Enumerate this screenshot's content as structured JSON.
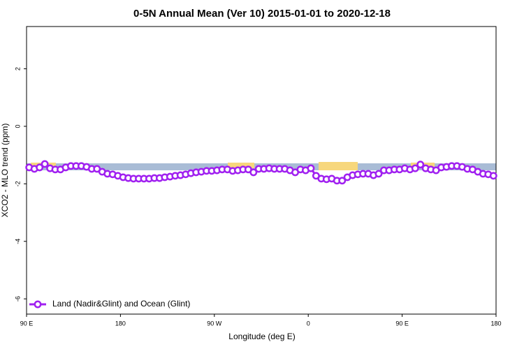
{
  "chart_data": {
    "type": "line",
    "title": "0-5N Annual Mean (Ver 10)   2015-01-01 to 2020-12-18",
    "x_label": "Longitude (deg E)",
    "y_label": "XCO2 - MLO trend (ppm)",
    "xlim": [
      90,
      540
    ],
    "xticks": [
      {
        "value": 90,
        "label": "90 E"
      },
      {
        "value": 180,
        "label": "180"
      },
      {
        "value": 270,
        "label": "90 W"
      },
      {
        "value": 360,
        "label": "0"
      },
      {
        "value": 450,
        "label": "90 E"
      },
      {
        "value": 540,
        "label": "180"
      }
    ],
    "ylim": [
      -6.53,
      3.47
    ],
    "yticks": [
      -6,
      -4,
      -2,
      0,
      2
    ],
    "legend": "bottom-left",
    "x": [
      92.5,
      97.5,
      102.5,
      107.5,
      112.5,
      117.5,
      122.5,
      127.5,
      132.5,
      137.5,
      142.5,
      147.5,
      152.5,
      157.5,
      162.5,
      167.5,
      172.5,
      177.5,
      182.5,
      187.5,
      192.5,
      197.5,
      202.5,
      207.5,
      212.5,
      217.5,
      222.5,
      227.5,
      232.5,
      237.5,
      242.5,
      247.5,
      252.5,
      257.5,
      262.5,
      267.5,
      272.5,
      277.5,
      282.5,
      287.5,
      292.5,
      297.5,
      302.5,
      307.5,
      312.5,
      317.5,
      322.5,
      327.5,
      332.5,
      337.5,
      342.5,
      347.5,
      352.5,
      357.5,
      362.5,
      367.5,
      372.5,
      377.5,
      382.5,
      387.5,
      392.5,
      397.5,
      402.5,
      407.5,
      412.5,
      417.5,
      422.5,
      427.5,
      432.5,
      437.5,
      442.5,
      447.5,
      452.5,
      457.5,
      462.5,
      467.5,
      472.5,
      477.5,
      482.5,
      487.5,
      492.5,
      497.5,
      502.5,
      507.5,
      512.5,
      517.5,
      522.5,
      527.5,
      532.5,
      537.5
    ],
    "series": [
      {
        "name": "Land (Nadir&Glint) and Ocean (Glint)",
        "color": "#a020f0",
        "values": [
          -1.43,
          -1.48,
          -1.43,
          -1.31,
          -1.46,
          -1.5,
          -1.5,
          -1.43,
          -1.38,
          -1.38,
          -1.38,
          -1.41,
          -1.48,
          -1.48,
          -1.58,
          -1.65,
          -1.67,
          -1.72,
          -1.77,
          -1.8,
          -1.82,
          -1.82,
          -1.82,
          -1.82,
          -1.8,
          -1.8,
          -1.77,
          -1.75,
          -1.72,
          -1.7,
          -1.67,
          -1.63,
          -1.6,
          -1.58,
          -1.55,
          -1.55,
          -1.53,
          -1.5,
          -1.5,
          -1.55,
          -1.53,
          -1.5,
          -1.5,
          -1.6,
          -1.48,
          -1.48,
          -1.46,
          -1.48,
          -1.48,
          -1.48,
          -1.53,
          -1.6,
          -1.5,
          -1.53,
          -1.46,
          -1.72,
          -1.82,
          -1.84,
          -1.82,
          -1.89,
          -1.89,
          -1.77,
          -1.7,
          -1.67,
          -1.65,
          -1.65,
          -1.7,
          -1.65,
          -1.53,
          -1.53,
          -1.5,
          -1.5,
          -1.46,
          -1.5,
          -1.46,
          -1.33,
          -1.46,
          -1.5,
          -1.53,
          -1.43,
          -1.41,
          -1.38,
          -1.38,
          -1.41,
          -1.48,
          -1.5,
          -1.58,
          -1.65,
          -1.67,
          -1.72
        ]
      }
    ]
  }
}
